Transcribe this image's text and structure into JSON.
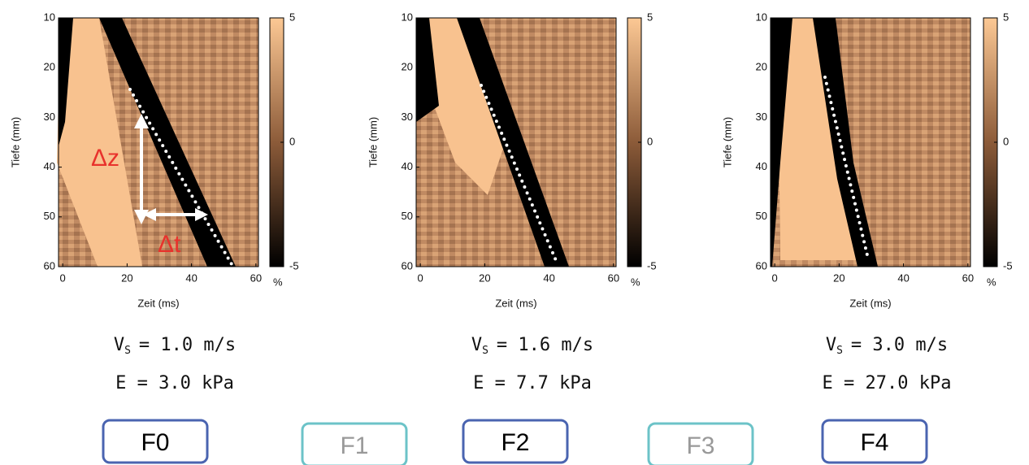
{
  "panels": [
    {
      "y_label": "Tiefe (mm)",
      "x_label": "Zeit (ms)",
      "xlim": [
        -1.3,
        60.8
      ],
      "ylim": [
        10,
        60
      ],
      "xticks": [
        0,
        20,
        40,
        60
      ],
      "yticks": [
        10,
        20,
        30,
        40,
        50,
        60
      ],
      "colorbar_lim": [
        -5,
        5
      ],
      "colorbar_ticks": [
        5,
        0,
        -5
      ],
      "colorbar_unit": "%",
      "velocity": {
        "symbol": "V",
        "subscript": "S",
        "text": "= 1.0 m/s"
      },
      "modulus": "E = 3.0 kPa",
      "annotations": [
        "Δz",
        "Δt"
      ]
    },
    {
      "y_label": "Tiefe (mm)",
      "x_label": "Zeit (ms)",
      "xlim": [
        -1.3,
        60.8
      ],
      "ylim": [
        10,
        60
      ],
      "xticks": [
        0,
        20,
        40,
        60
      ],
      "yticks": [
        10,
        20,
        30,
        40,
        50,
        60
      ],
      "colorbar_lim": [
        -5,
        5
      ],
      "colorbar_ticks": [
        5,
        0,
        -5
      ],
      "colorbar_unit": "%",
      "velocity": {
        "symbol": "V",
        "subscript": "S",
        "text": "= 1.6 m/s"
      },
      "modulus": "E = 7.7 kPa"
    },
    {
      "y_label": "Tiefe (mm)",
      "x_label": "Zeit (ms)",
      "xlim": [
        -1.3,
        60.8
      ],
      "ylim": [
        10,
        60
      ],
      "xticks": [
        0,
        20,
        40,
        60
      ],
      "yticks": [
        10,
        20,
        30,
        40,
        50,
        60
      ],
      "colorbar_lim": [
        -5,
        5
      ],
      "colorbar_ticks": [
        5,
        0,
        -5
      ],
      "colorbar_unit": "%",
      "velocity": {
        "symbol": "V",
        "subscript": "S",
        "text": "= 3.0 m/s"
      },
      "modulus": "E = 27.0 kPa"
    }
  ],
  "stages": [
    {
      "label": "F0",
      "active": true
    },
    {
      "label": "F1",
      "active": false
    },
    {
      "label": "F2",
      "active": true
    },
    {
      "label": "F3",
      "active": false
    },
    {
      "label": "F4",
      "active": true
    }
  ]
}
